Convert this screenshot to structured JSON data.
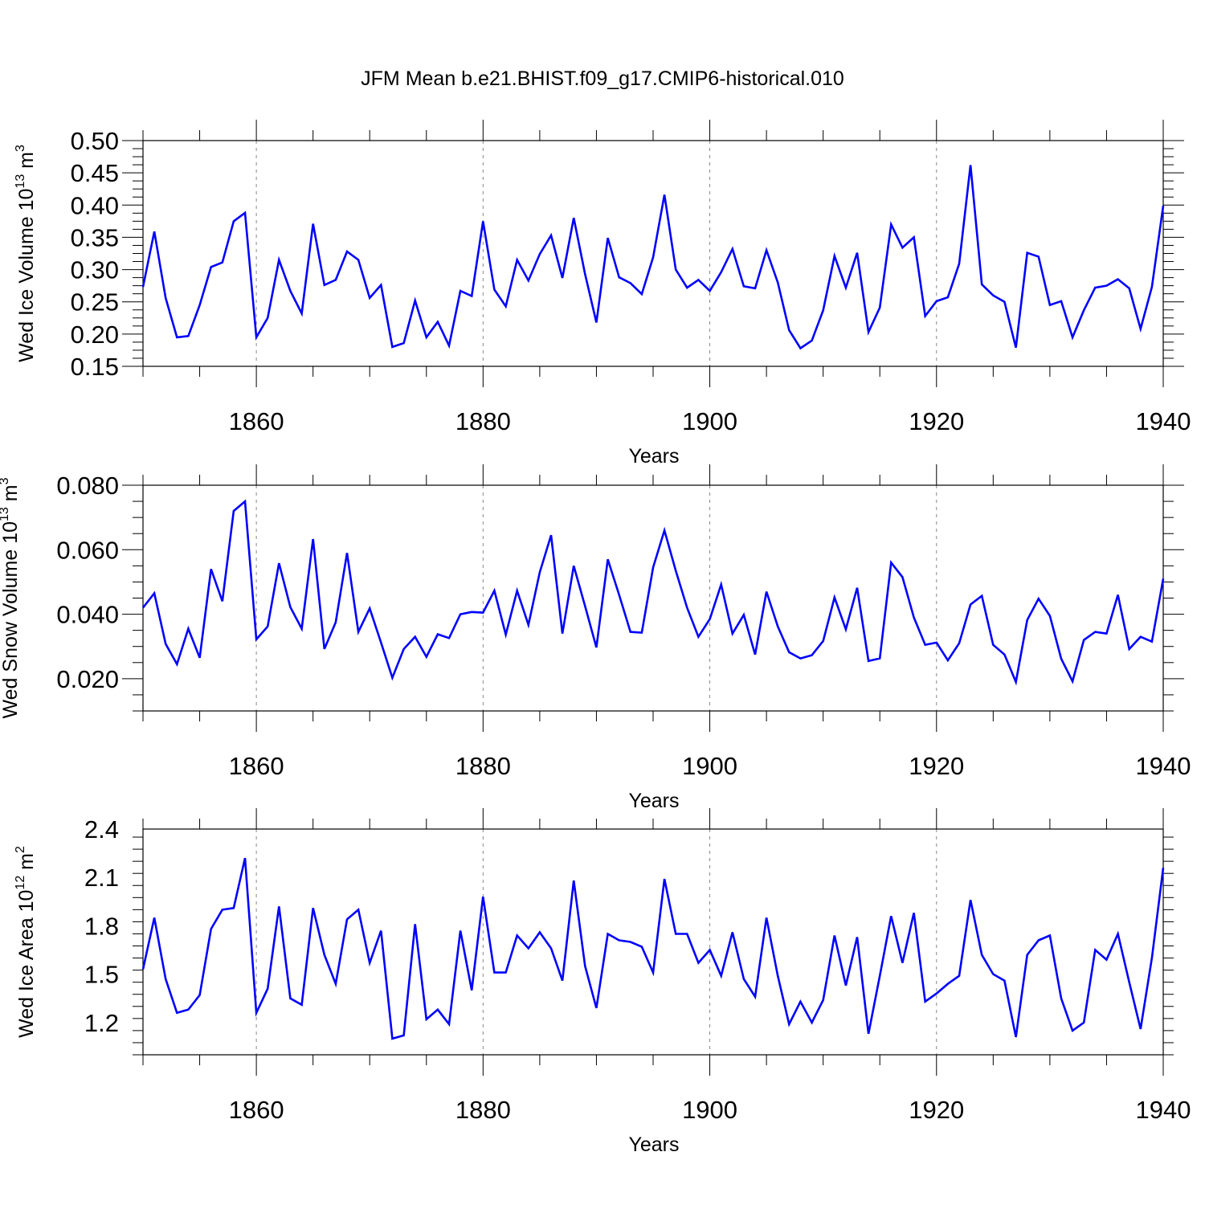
{
  "title": "JFM Mean b.e21.BHIST.f09_g17.CMIP6-historical.010",
  "colors": {
    "series": "#0000ff",
    "axis": "#000000",
    "grid": "#888888"
  },
  "chart_data": [
    {
      "type": "line",
      "xlabel": "Years",
      "ylabel": {
        "prefix": "Wed Ice Volume 10",
        "sup1": "13",
        "mid": " m",
        "sup2": "3"
      },
      "xlim": [
        1850,
        1940
      ],
      "ylim": [
        0.15,
        0.5
      ],
      "xticks": [
        "1860",
        "1880",
        "1900",
        "1920",
        "1940"
      ],
      "yticks": [
        "0.15",
        "0.20",
        "0.25",
        "0.30",
        "0.35",
        "0.40",
        "0.45",
        "0.50"
      ],
      "x": [
        1850,
        1851,
        1852,
        1853,
        1854,
        1855,
        1856,
        1857,
        1858,
        1859,
        1860,
        1861,
        1862,
        1863,
        1864,
        1865,
        1866,
        1867,
        1868,
        1869,
        1870,
        1871,
        1872,
        1873,
        1874,
        1875,
        1876,
        1877,
        1878,
        1879,
        1880,
        1881,
        1882,
        1883,
        1884,
        1885,
        1886,
        1887,
        1888,
        1889,
        1890,
        1891,
        1892,
        1893,
        1894,
        1895,
        1896,
        1897,
        1898,
        1899,
        1900,
        1901,
        1902,
        1903,
        1904,
        1905,
        1906,
        1907,
        1908,
        1909,
        1910,
        1911,
        1912,
        1913,
        1914,
        1915,
        1916,
        1917,
        1918,
        1919,
        1920,
        1921,
        1922,
        1923,
        1924,
        1925,
        1926,
        1927,
        1928,
        1929,
        1930,
        1931,
        1932,
        1933,
        1934,
        1935,
        1936,
        1937,
        1938,
        1939,
        1940
      ],
      "values": [
        0.273,
        0.359,
        0.256,
        0.195,
        0.197,
        0.245,
        0.304,
        0.311,
        0.375,
        0.388,
        0.195,
        0.225,
        0.315,
        0.267,
        0.232,
        0.371,
        0.276,
        0.284,
        0.328,
        0.315,
        0.256,
        0.276,
        0.18,
        0.186,
        0.252,
        0.195,
        0.219,
        0.182,
        0.267,
        0.259,
        0.375,
        0.269,
        0.243,
        0.315,
        0.283,
        0.324,
        0.353,
        0.287,
        0.38,
        0.293,
        0.218,
        0.349,
        0.288,
        0.279,
        0.262,
        0.319,
        0.416,
        0.3,
        0.272,
        0.284,
        0.267,
        0.296,
        0.332,
        0.274,
        0.271,
        0.33,
        0.28,
        0.206,
        0.178,
        0.19,
        0.237,
        0.321,
        0.272,
        0.326,
        0.203,
        0.241,
        0.37,
        0.334,
        0.35,
        0.228,
        0.251,
        0.257,
        0.309,
        0.462,
        0.277,
        0.26,
        0.25,
        0.179,
        0.326,
        0.32,
        0.245,
        0.251,
        0.195,
        0.237,
        0.272,
        0.275,
        0.285,
        0.271,
        0.208,
        0.273,
        0.399
      ]
    },
    {
      "type": "line",
      "xlabel": "Years",
      "ylabel": {
        "prefix": "Wed Snow Volume 10",
        "sup1": "13",
        "mid": " m",
        "sup2": "3"
      },
      "xlim": [
        1850,
        1940
      ],
      "ylim": [
        0.01,
        0.08
      ],
      "xticks": [
        "1860",
        "1880",
        "1900",
        "1920",
        "1940"
      ],
      "yticks": [
        "0.020",
        "0.040",
        "0.060",
        "0.080"
      ],
      "x": [
        1850,
        1851,
        1852,
        1853,
        1854,
        1855,
        1856,
        1857,
        1858,
        1859,
        1860,
        1861,
        1862,
        1863,
        1864,
        1865,
        1866,
        1867,
        1868,
        1869,
        1870,
        1871,
        1872,
        1873,
        1874,
        1875,
        1876,
        1877,
        1878,
        1879,
        1880,
        1881,
        1882,
        1883,
        1884,
        1885,
        1886,
        1887,
        1888,
        1889,
        1890,
        1891,
        1892,
        1893,
        1894,
        1895,
        1896,
        1897,
        1898,
        1899,
        1900,
        1901,
        1902,
        1903,
        1904,
        1905,
        1906,
        1907,
        1908,
        1909,
        1910,
        1911,
        1912,
        1913,
        1914,
        1915,
        1916,
        1917,
        1918,
        1919,
        1920,
        1921,
        1922,
        1923,
        1924,
        1925,
        1926,
        1927,
        1928,
        1929,
        1930,
        1931,
        1932,
        1933,
        1934,
        1935,
        1936,
        1937,
        1938,
        1939,
        1940
      ],
      "values": [
        0.042,
        0.0465,
        0.0308,
        0.0245,
        0.0355,
        0.0265,
        0.054,
        0.044,
        0.072,
        0.075,
        0.0322,
        0.0362,
        0.0558,
        0.0422,
        0.0355,
        0.0633,
        0.0292,
        0.0375,
        0.059,
        0.0345,
        0.0418,
        0.0312,
        0.0203,
        0.0292,
        0.033,
        0.0268,
        0.0338,
        0.0326,
        0.04,
        0.0407,
        0.0405,
        0.0473,
        0.0337,
        0.0473,
        0.0367,
        0.053,
        0.0645,
        0.034,
        0.055,
        0.0425,
        0.0297,
        0.057,
        0.046,
        0.0345,
        0.0343,
        0.0545,
        0.066,
        0.0535,
        0.042,
        0.033,
        0.0385,
        0.0492,
        0.034,
        0.0398,
        0.0275,
        0.047,
        0.0362,
        0.0282,
        0.0263,
        0.0273,
        0.0317,
        0.0452,
        0.0353,
        0.0482,
        0.0255,
        0.0263,
        0.056,
        0.0515,
        0.039,
        0.0305,
        0.0312,
        0.0257,
        0.031,
        0.043,
        0.0457,
        0.0305,
        0.0275,
        0.019,
        0.0382,
        0.0448,
        0.0395,
        0.0262,
        0.0192,
        0.032,
        0.0345,
        0.034,
        0.046,
        0.0292,
        0.033,
        0.0315,
        0.051
      ]
    },
    {
      "type": "line",
      "xlabel": "Years",
      "ylabel": {
        "prefix": "Wed Ice Area 10",
        "sup1": "12",
        "mid": " m",
        "sup2": "2"
      },
      "xlim": [
        1850,
        1940
      ],
      "ylim": [
        1.0,
        2.4
      ],
      "xticks": [
        "1860",
        "1880",
        "1900",
        "1920",
        "1940"
      ],
      "yticks": [
        "1.2",
        "1.5",
        "1.8",
        "2.1",
        "2.4"
      ],
      "x": [
        1850,
        1851,
        1852,
        1853,
        1854,
        1855,
        1856,
        1857,
        1858,
        1859,
        1860,
        1861,
        1862,
        1863,
        1864,
        1865,
        1866,
        1867,
        1868,
        1869,
        1870,
        1871,
        1872,
        1873,
        1874,
        1875,
        1876,
        1877,
        1878,
        1879,
        1880,
        1881,
        1882,
        1883,
        1884,
        1885,
        1886,
        1887,
        1888,
        1889,
        1890,
        1891,
        1892,
        1893,
        1894,
        1895,
        1896,
        1897,
        1898,
        1899,
        1900,
        1901,
        1902,
        1903,
        1904,
        1905,
        1906,
        1907,
        1908,
        1909,
        1910,
        1911,
        1912,
        1913,
        1914,
        1915,
        1916,
        1917,
        1918,
        1919,
        1920,
        1921,
        1922,
        1923,
        1924,
        1925,
        1926,
        1927,
        1928,
        1929,
        1930,
        1931,
        1932,
        1933,
        1934,
        1935,
        1936,
        1937,
        1938,
        1939,
        1940
      ],
      "values": [
        1.53,
        1.85,
        1.47,
        1.26,
        1.28,
        1.37,
        1.78,
        1.9,
        1.91,
        2.22,
        1.26,
        1.41,
        1.92,
        1.35,
        1.31,
        1.91,
        1.62,
        1.44,
        1.84,
        1.9,
        1.57,
        1.77,
        1.1,
        1.12,
        1.81,
        1.22,
        1.28,
        1.19,
        1.77,
        1.4,
        1.98,
        1.51,
        1.51,
        1.74,
        1.66,
        1.76,
        1.66,
        1.46,
        2.08,
        1.55,
        1.29,
        1.75,
        1.71,
        1.7,
        1.67,
        1.51,
        2.09,
        1.75,
        1.75,
        1.57,
        1.65,
        1.49,
        1.76,
        1.47,
        1.36,
        1.85,
        1.49,
        1.19,
        1.33,
        1.2,
        1.34,
        1.74,
        1.43,
        1.73,
        1.13,
        1.49,
        1.86,
        1.57,
        1.88,
        1.33,
        1.38,
        1.44,
        1.49,
        1.96,
        1.62,
        1.5,
        1.46,
        1.11,
        1.62,
        1.71,
        1.74,
        1.35,
        1.15,
        1.2,
        1.65,
        1.59,
        1.75,
        1.45,
        1.16,
        1.6,
        2.16
      ]
    }
  ]
}
